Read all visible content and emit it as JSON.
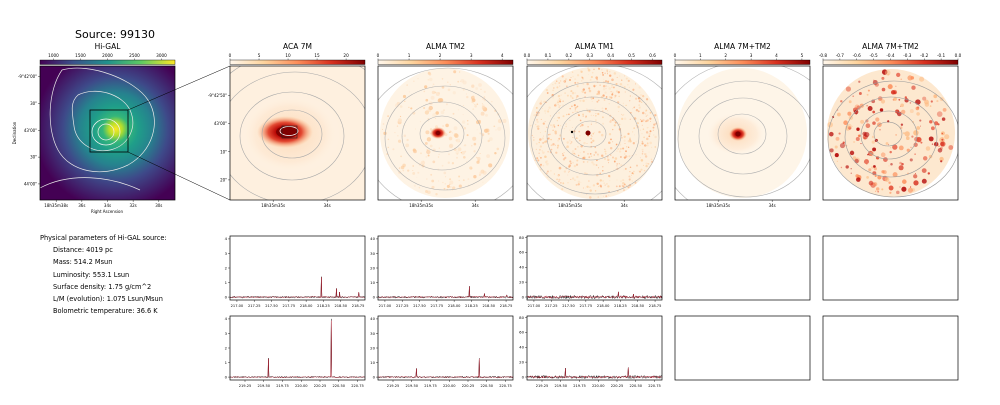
{
  "figure": {
    "source_title": "Source: 99130",
    "params": {
      "heading": "Physical parameters of Hi-GAL source:",
      "lines": [
        "Distance: 4019 pc",
        "Mass: 514.2 Msun",
        "Luminosity: 553.1 Lsun",
        "Surface density: 1.75 g/cm^2",
        "L/M (evolution): 1.075 Lsun/Msun",
        "Bolometric temperature: 36.6 K"
      ]
    }
  },
  "chart_data": [
    {
      "type": "heatmap",
      "title": "Hi-GAL",
      "xlabel": "Right Ascension",
      "ylabel": "Declination",
      "colorbar_ticks": [
        "1000",
        "1500",
        "2000",
        "2500",
        "3000"
      ],
      "xticks": [
        "18h35m38s",
        "36s",
        "34s",
        "32s",
        "30s"
      ],
      "yticks": [
        "-9°42'00\"",
        "30\"",
        "43'00\"",
        "30\"",
        "44'00\""
      ],
      "colormap": "viridis"
    },
    {
      "type": "heatmap",
      "title": "ACA 7M",
      "colorbar_ticks": [
        "0",
        "5",
        "10",
        "15",
        "20"
      ],
      "xticks": [
        "18h35m35s",
        "34s"
      ],
      "yticks": [
        "-9°42'50\"",
        "43'00\"",
        "10\"",
        "20\""
      ],
      "colormap": "OrRd"
    },
    {
      "type": "heatmap",
      "title": "ALMA TM2",
      "colorbar_ticks": [
        "0",
        "1",
        "2",
        "3",
        "4"
      ],
      "xticks": [
        "18h35m35s",
        "34s"
      ],
      "colormap": "OrRd"
    },
    {
      "type": "heatmap",
      "title": "ALMA TM1",
      "colorbar_ticks": [
        "0.0",
        "0.1",
        "0.2",
        "0.3",
        "0.4",
        "0.5",
        "0.6"
      ],
      "xticks": [
        "18h35m35s",
        "34s"
      ],
      "colormap": "OrRd"
    },
    {
      "type": "heatmap",
      "title": "ALMA 7M+TM2",
      "colorbar_ticks": [
        "0",
        "1",
        "2",
        "3",
        "4",
        "5"
      ],
      "xticks": [
        "18h35m35s",
        "34s"
      ],
      "colormap": "OrRd"
    },
    {
      "type": "heatmap",
      "title": "ALMA 7M+TM2",
      "colorbar_ticks": [
        "-0.8",
        "-0.7",
        "-0.6",
        "-0.5",
        "-0.4",
        "-0.3",
        "-0.2",
        "-0.1",
        "0.0"
      ],
      "colormap": "OrRd"
    },
    {
      "type": "line",
      "panel": "spectrum-row1-aca",
      "xlim": [
        216.9,
        218.85
      ],
      "ylim": [
        -0.2,
        4.2
      ],
      "xticks": [
        217.0,
        217.25,
        217.5,
        217.75,
        218.0,
        218.25,
        218.5,
        218.75
      ],
      "yticks": [
        0,
        1,
        2,
        3,
        4
      ],
      "peaks": [
        {
          "x": 218.22,
          "y": 1.4
        },
        {
          "x": 218.44,
          "y": 0.6
        },
        {
          "x": 218.48,
          "y": 0.35
        },
        {
          "x": 218.76,
          "y": 0.35
        }
      ],
      "noise": 0.06
    },
    {
      "type": "line",
      "panel": "spectrum-row1-tm2",
      "xlim": [
        216.9,
        218.85
      ],
      "ylim": [
        -2,
        42
      ],
      "xticks": [
        217.0,
        217.25,
        217.5,
        217.75,
        218.0,
        218.25,
        218.5,
        218.75
      ],
      "yticks": [
        0,
        10,
        20,
        30,
        40
      ],
      "peaks": [
        {
          "x": 218.22,
          "y": 7.5
        },
        {
          "x": 218.44,
          "y": 2.5
        },
        {
          "x": 218.76,
          "y": 1.5
        }
      ],
      "noise": 0.7
    },
    {
      "type": "line",
      "panel": "spectrum-row1-tm1",
      "xlim": [
        216.9,
        218.85
      ],
      "ylim": [
        -4,
        82
      ],
      "xticks": [
        217.0,
        217.25,
        217.5,
        217.75,
        218.0,
        218.25,
        218.5,
        218.75
      ],
      "yticks": [
        0,
        20,
        40,
        60,
        80
      ],
      "peaks": [
        {
          "x": 218.22,
          "y": 7
        },
        {
          "x": 218.44,
          "y": 4
        }
      ],
      "noise": 2.2
    },
    {
      "type": "line",
      "panel": "spectrum-row2-aca",
      "xlim": [
        219.05,
        220.85
      ],
      "ylim": [
        -0.2,
        4.2
      ],
      "xticks": [
        219.25,
        219.5,
        219.75,
        220.0,
        220.25,
        220.5,
        220.75
      ],
      "yticks": [
        0,
        1,
        2,
        3,
        4
      ],
      "peaks": [
        {
          "x": 219.56,
          "y": 1.3
        },
        {
          "x": 220.4,
          "y": 4.0
        }
      ],
      "noise": 0.05
    },
    {
      "type": "line",
      "panel": "spectrum-row2-tm2",
      "xlim": [
        219.05,
        220.85
      ],
      "ylim": [
        -2,
        42
      ],
      "xticks": [
        219.25,
        219.5,
        219.75,
        220.0,
        220.25,
        220.5,
        220.75
      ],
      "yticks": [
        0,
        10,
        20,
        30,
        40
      ],
      "peaks": [
        {
          "x": 219.56,
          "y": 6
        },
        {
          "x": 220.4,
          "y": 13
        }
      ],
      "noise": 0.6
    },
    {
      "type": "line",
      "panel": "spectrum-row2-tm1",
      "xlim": [
        219.05,
        220.85
      ],
      "ylim": [
        -4,
        82
      ],
      "xticks": [
        219.25,
        219.5,
        219.75,
        220.0,
        220.25,
        220.5,
        220.75
      ],
      "yticks": [
        0,
        20,
        40,
        60,
        80
      ],
      "peaks": [
        {
          "x": 219.56,
          "y": 12
        },
        {
          "x": 220.4,
          "y": 13
        }
      ],
      "noise": 2.0
    }
  ]
}
